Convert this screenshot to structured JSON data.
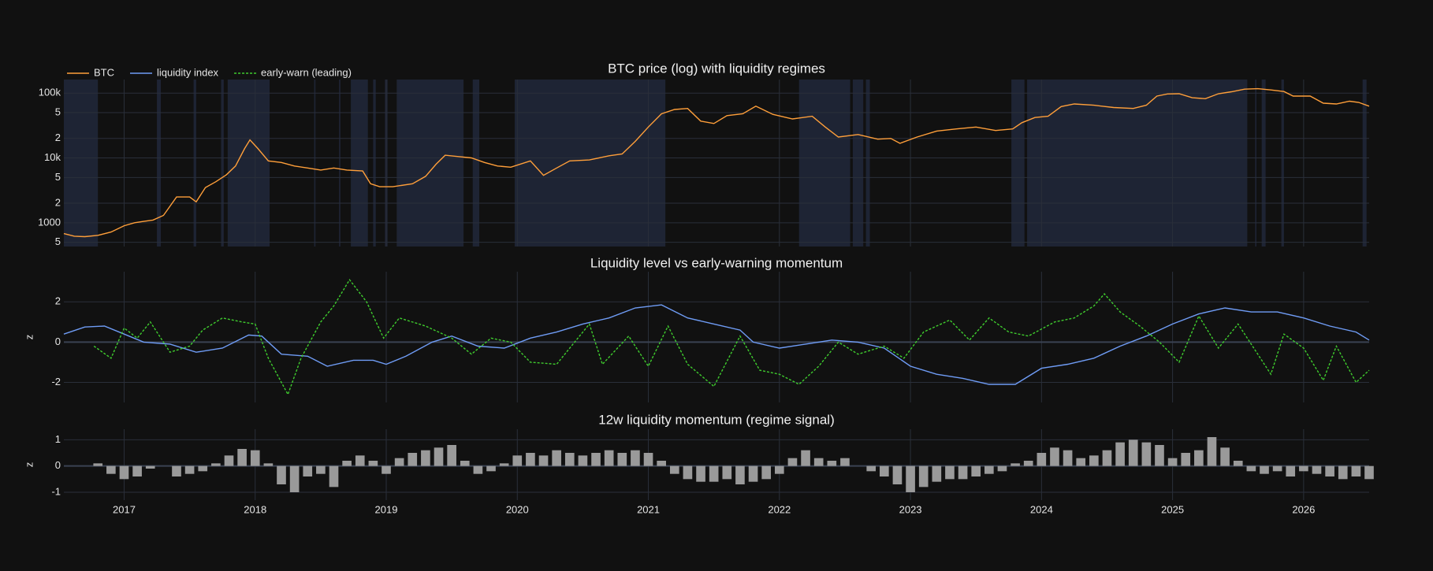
{
  "chart_data": [
    {
      "type": "line",
      "title": "BTC price (log) with liquidity regimes",
      "log_y": true,
      "legend": "top-left",
      "grid": true,
      "ylim": [
        430,
        162000
      ],
      "yticks": [
        {
          "value": 500,
          "label": "5"
        },
        1000,
        {
          "value": 2000,
          "label": "2"
        },
        {
          "value": 5000,
          "label": "5"
        },
        {
          "value": 10000,
          "label": "10k"
        },
        {
          "value": 20000,
          "label": "2"
        },
        {
          "value": 50000,
          "label": "5"
        },
        {
          "value": 100000,
          "label": "100k"
        }
      ],
      "regime_color": "#1e2434",
      "regimes": [
        [
          2016.54,
          2016.8
        ],
        [
          2017.25,
          2017.28
        ],
        [
          2017.53,
          2017.55
        ],
        [
          2017.74,
          2017.76
        ],
        [
          2017.79,
          2018.11
        ],
        [
          2018.45,
          2018.46
        ],
        [
          2018.64,
          2018.65
        ],
        [
          2018.73,
          2018.86
        ],
        [
          2018.9,
          2018.92
        ],
        [
          2018.99,
          2019.01
        ],
        [
          2019.08,
          2019.59
        ],
        [
          2019.66,
          2019.71
        ],
        [
          2019.98,
          2021.13
        ],
        [
          2022.15,
          2022.54
        ],
        [
          2022.56,
          2022.64
        ],
        [
          2022.66,
          2022.69
        ],
        [
          2023.77,
          2023.87
        ],
        [
          2023.89,
          2025.57
        ],
        [
          2025.63,
          2025.64
        ],
        [
          2025.68,
          2025.71
        ],
        [
          2025.83,
          2025.85
        ],
        [
          2026.45,
          2026.48
        ]
      ],
      "series": [
        {
          "name": "BTC",
          "color": "#ff9f3a",
          "dash": false,
          "x": [
            2016.54,
            2016.62,
            2016.7,
            2016.8,
            2016.9,
            2017.0,
            2017.08,
            2017.15,
            2017.22,
            2017.3,
            2017.4,
            2017.5,
            2017.55,
            2017.62,
            2017.7,
            2017.78,
            2017.85,
            2017.92,
            2017.96,
            2018.02,
            2018.1,
            2018.2,
            2018.3,
            2018.4,
            2018.5,
            2018.6,
            2018.7,
            2018.82,
            2018.88,
            2018.95,
            2019.05,
            2019.2,
            2019.3,
            2019.38,
            2019.45,
            2019.55,
            2019.65,
            2019.75,
            2019.85,
            2019.95,
            2020.1,
            2020.2,
            2020.3,
            2020.4,
            2020.55,
            2020.7,
            2020.8,
            2020.9,
            2021.0,
            2021.1,
            2021.2,
            2021.3,
            2021.4,
            2021.5,
            2021.6,
            2021.72,
            2021.82,
            2021.95,
            2022.1,
            2022.25,
            2022.35,
            2022.45,
            2022.6,
            2022.75,
            2022.85,
            2022.92,
            2023.05,
            2023.2,
            2023.35,
            2023.5,
            2023.65,
            2023.78,
            2023.85,
            2023.95,
            2024.05,
            2024.15,
            2024.25,
            2024.4,
            2024.55,
            2024.7,
            2024.8,
            2024.88,
            2024.96,
            2025.05,
            2025.15,
            2025.25,
            2025.35,
            2025.45,
            2025.55,
            2025.65,
            2025.75,
            2025.85,
            2025.92,
            2026.05,
            2026.15,
            2026.25,
            2026.35,
            2026.42,
            2026.5
          ],
          "values": [
            680,
            620,
            610,
            640,
            720,
            900,
            1000,
            1050,
            1100,
            1300,
            2500,
            2500,
            2100,
            3500,
            4300,
            5500,
            7500,
            14000,
            19000,
            14000,
            9000,
            8500,
            7500,
            7000,
            6500,
            7000,
            6500,
            6300,
            4000,
            3600,
            3600,
            4000,
            5200,
            8000,
            11000,
            10500,
            10000,
            8500,
            7500,
            7200,
            9000,
            5400,
            7000,
            9000,
            9300,
            10800,
            11500,
            18000,
            30000,
            48000,
            56000,
            58000,
            37000,
            34000,
            45000,
            48000,
            63000,
            47000,
            40000,
            44000,
            30000,
            21000,
            23000,
            19500,
            20000,
            16800,
            21000,
            26000,
            28000,
            30000,
            26500,
            28000,
            35000,
            42000,
            44000,
            62000,
            68000,
            65000,
            60000,
            58000,
            65000,
            90000,
            97000,
            98000,
            85000,
            82000,
            98000,
            105000,
            115000,
            117000,
            112000,
            106000,
            90000,
            90000,
            70000,
            68000,
            75000,
            72000,
            63000
          ]
        }
      ]
    },
    {
      "type": "line",
      "title": "Liquidity level vs early-warning momentum",
      "ylabel": "z",
      "log_y": false,
      "grid": true,
      "ylim": [
        -3,
        3.5
      ],
      "yticks": [
        -2,
        0,
        2
      ],
      "series": [
        {
          "name": "liquidity index",
          "color": "#6f9cf5",
          "dash": false,
          "x": [
            2016.54,
            2016.7,
            2016.85,
            2017.0,
            2017.15,
            2017.35,
            2017.55,
            2017.75,
            2017.95,
            2018.05,
            2018.2,
            2018.4,
            2018.55,
            2018.75,
            2018.9,
            2019.0,
            2019.15,
            2019.35,
            2019.5,
            2019.7,
            2019.9,
            2020.1,
            2020.3,
            2020.5,
            2020.7,
            2020.9,
            2021.1,
            2021.3,
            2021.5,
            2021.7,
            2021.8,
            2022.0,
            2022.2,
            2022.4,
            2022.6,
            2022.8,
            2023.0,
            2023.2,
            2023.4,
            2023.6,
            2023.8,
            2024.0,
            2024.2,
            2024.4,
            2024.6,
            2024.8,
            2025.0,
            2025.2,
            2025.4,
            2025.6,
            2025.8,
            2026.0,
            2026.2,
            2026.4,
            2026.5
          ],
          "values": [
            0.4,
            0.75,
            0.8,
            0.4,
            0.0,
            -0.1,
            -0.5,
            -0.3,
            0.35,
            0.3,
            -0.6,
            -0.7,
            -1.2,
            -0.9,
            -0.9,
            -1.1,
            -0.7,
            0.0,
            0.3,
            -0.2,
            -0.3,
            0.2,
            0.5,
            0.9,
            1.2,
            1.7,
            1.85,
            1.2,
            0.9,
            0.6,
            0.0,
            -0.3,
            -0.1,
            0.1,
            0.0,
            -0.3,
            -1.2,
            -1.6,
            -1.8,
            -2.1,
            -2.1,
            -1.3,
            -1.1,
            -0.8,
            -0.2,
            0.3,
            0.9,
            1.4,
            1.7,
            1.5,
            1.5,
            1.2,
            0.8,
            0.5,
            0.1
          ]
        },
        {
          "name": "early-warn (leading)",
          "color": "#3fcc2e",
          "dash": true,
          "x": [
            2016.77,
            2016.9,
            2017.0,
            2017.1,
            2017.2,
            2017.35,
            2017.5,
            2017.6,
            2017.75,
            2017.9,
            2018.0,
            2018.1,
            2018.25,
            2018.35,
            2018.5,
            2018.6,
            2018.72,
            2018.85,
            2018.98,
            2019.1,
            2019.3,
            2019.5,
            2019.65,
            2019.8,
            2019.95,
            2020.1,
            2020.3,
            2020.45,
            2020.55,
            2020.65,
            2020.85,
            2021.0,
            2021.15,
            2021.3,
            2021.5,
            2021.7,
            2021.85,
            2022.0,
            2022.15,
            2022.3,
            2022.45,
            2022.6,
            2022.8,
            2022.95,
            2023.1,
            2023.3,
            2023.45,
            2023.6,
            2023.75,
            2023.9,
            2024.1,
            2024.25,
            2024.4,
            2024.48,
            2024.6,
            2024.75,
            2024.9,
            2025.05,
            2025.2,
            2025.35,
            2025.5,
            2025.65,
            2025.75,
            2025.85,
            2026.0,
            2026.15,
            2026.25,
            2026.4,
            2026.5
          ],
          "values": [
            -0.2,
            -0.8,
            0.7,
            0.2,
            1.0,
            -0.5,
            -0.2,
            0.6,
            1.2,
            1.0,
            0.9,
            -0.8,
            -2.6,
            -0.8,
            1.0,
            1.8,
            3.1,
            2.0,
            0.2,
            1.2,
            0.8,
            0.2,
            -0.6,
            0.2,
            0.0,
            -1.0,
            -1.1,
            0.1,
            0.9,
            -1.1,
            0.3,
            -1.2,
            0.8,
            -1.1,
            -2.2,
            0.3,
            -1.4,
            -1.6,
            -2.1,
            -1.2,
            0.0,
            -0.6,
            -0.2,
            -0.8,
            0.5,
            1.1,
            0.1,
            1.2,
            0.5,
            0.3,
            1.0,
            1.2,
            1.8,
            2.4,
            1.5,
            0.8,
            0.0,
            -1.0,
            1.3,
            -0.3,
            0.9,
            -0.6,
            -1.6,
            0.4,
            -0.3,
            -1.9,
            -0.2,
            -2.0,
            -1.4
          ]
        }
      ]
    },
    {
      "type": "bar",
      "title": "12w liquidity momentum (regime signal)",
      "ylabel": "z",
      "grid": true,
      "color": "#9a9a9a",
      "ylim": [
        -1.3,
        1.4
      ],
      "yticks": [
        -1,
        0,
        1
      ],
      "xlim": [
        2016.54,
        2026.5
      ],
      "xticks": [
        2017,
        2018,
        2019,
        2020,
        2021,
        2022,
        2023,
        2024,
        2025,
        2026
      ],
      "x": [
        2016.8,
        2016.9,
        2017.0,
        2017.1,
        2017.2,
        2017.3,
        2017.4,
        2017.5,
        2017.6,
        2017.7,
        2017.8,
        2017.9,
        2018.0,
        2018.1,
        2018.2,
        2018.3,
        2018.4,
        2018.5,
        2018.6,
        2018.7,
        2018.8,
        2018.9,
        2019.0,
        2019.1,
        2019.2,
        2019.3,
        2019.4,
        2019.5,
        2019.6,
        2019.7,
        2019.8,
        2019.9,
        2020.0,
        2020.1,
        2020.2,
        2020.3,
        2020.4,
        2020.5,
        2020.6,
        2020.7,
        2020.8,
        2020.9,
        2021.0,
        2021.1,
        2021.2,
        2021.3,
        2021.4,
        2021.5,
        2021.6,
        2021.7,
        2021.8,
        2021.9,
        2022.0,
        2022.1,
        2022.2,
        2022.3,
        2022.4,
        2022.5,
        2022.6,
        2022.7,
        2022.8,
        2022.9,
        2023.0,
        2023.1,
        2023.2,
        2023.3,
        2023.4,
        2023.5,
        2023.6,
        2023.7,
        2023.8,
        2023.9,
        2024.0,
        2024.1,
        2024.2,
        2024.3,
        2024.4,
        2024.5,
        2024.6,
        2024.7,
        2024.8,
        2024.9,
        2025.0,
        2025.1,
        2025.2,
        2025.3,
        2025.4,
        2025.5,
        2025.6,
        2025.7,
        2025.8,
        2025.9,
        2026.0,
        2026.1,
        2026.2,
        2026.3,
        2026.4,
        2026.5
      ],
      "values": [
        0.1,
        -0.3,
        -0.5,
        -0.4,
        -0.1,
        0.0,
        -0.4,
        -0.3,
        -0.2,
        0.1,
        0.4,
        0.65,
        0.6,
        0.1,
        -0.7,
        -1.0,
        -0.4,
        -0.3,
        -0.8,
        0.2,
        0.4,
        0.2,
        -0.3,
        0.3,
        0.5,
        0.6,
        0.7,
        0.8,
        0.2,
        -0.3,
        -0.2,
        0.1,
        0.4,
        0.5,
        0.4,
        0.6,
        0.5,
        0.4,
        0.5,
        0.6,
        0.5,
        0.6,
        0.5,
        0.2,
        -0.3,
        -0.5,
        -0.6,
        -0.6,
        -0.5,
        -0.7,
        -0.6,
        -0.5,
        -0.3,
        0.3,
        0.6,
        0.3,
        0.2,
        0.3,
        0.0,
        -0.2,
        -0.4,
        -0.7,
        -1.0,
        -0.8,
        -0.6,
        -0.5,
        -0.5,
        -0.4,
        -0.3,
        -0.2,
        0.1,
        0.2,
        0.5,
        0.7,
        0.6,
        0.3,
        0.4,
        0.6,
        0.9,
        1.0,
        0.9,
        0.8,
        0.3,
        0.5,
        0.6,
        1.1,
        0.7,
        0.2,
        -0.2,
        -0.3,
        -0.2,
        -0.4,
        -0.2,
        -0.3,
        -0.4,
        -0.5,
        -0.4,
        -0.5
      ]
    }
  ]
}
